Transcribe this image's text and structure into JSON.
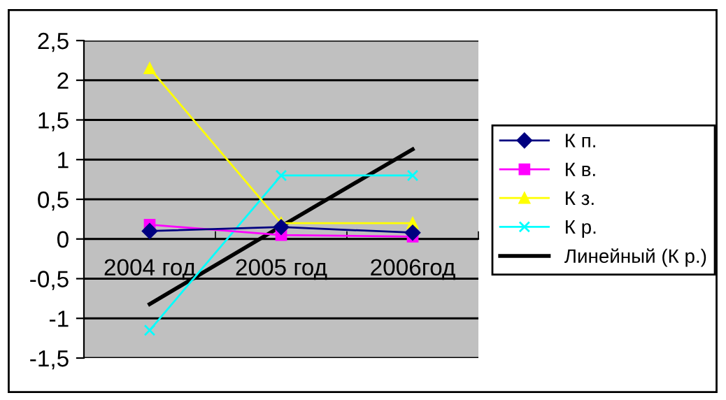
{
  "chart_data": {
    "type": "line",
    "categories": [
      "2004 год",
      "2005 год",
      "2006год"
    ],
    "series": [
      {
        "name": "К п.",
        "color": "#000080",
        "marker": "diamond",
        "values": [
          0.1,
          0.15,
          0.08
        ]
      },
      {
        "name": "К в.",
        "color": "#ff00ff",
        "marker": "square",
        "values": [
          0.18,
          0.05,
          0.03
        ]
      },
      {
        "name": "К з.",
        "color": "#ffff00",
        "marker": "triangle",
        "values": [
          2.15,
          0.2,
          0.2
        ]
      },
      {
        "name": "К р.",
        "color": "#00ffff",
        "marker": "cross",
        "values": [
          -1.15,
          0.8,
          0.8
        ]
      },
      {
        "name": "Линейный (К р.)",
        "color": "#000000",
        "marker": "none",
        "values": [
          -0.82,
          0.16,
          1.13
        ]
      }
    ],
    "ylim": [
      -1.5,
      2.5
    ],
    "yticks": [
      {
        "value": -1.5,
        "label": "-1,5"
      },
      {
        "value": -1,
        "label": "-1"
      },
      {
        "value": -0.5,
        "label": "-0,5"
      },
      0,
      {
        "value": 0.5,
        "label": "0,5"
      },
      1,
      {
        "value": 1.5,
        "label": "1,5"
      },
      2,
      {
        "value": 2.5,
        "label": "2,5"
      }
    ],
    "grid": "y",
    "legend": "right"
  }
}
